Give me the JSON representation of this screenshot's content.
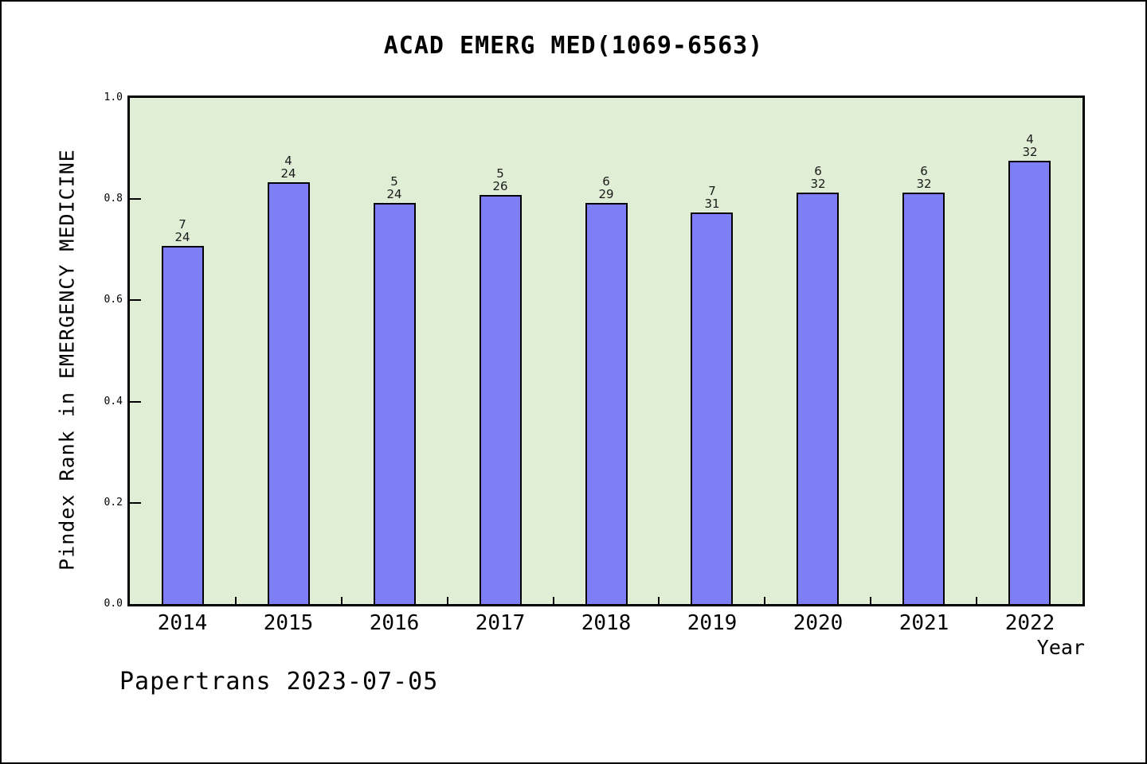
{
  "title": "ACAD EMERG MED(1069-6563)",
  "footer": "Papertrans 2023-07-05",
  "chart_data": {
    "type": "bar",
    "title": "ACAD EMERG MED(1069-6563)",
    "xlabel": "Year",
    "ylabel": "Pindex Rank in EMERGENCY MEDICINE",
    "ylim": [
      0.0,
      1.0
    ],
    "ytick_labels": [
      "1.0",
      "0.8",
      "0.6",
      "0.4",
      "0.2",
      "0.0"
    ],
    "ytick_values": [
      1.0,
      0.8,
      0.6,
      0.4,
      0.2,
      0.0
    ],
    "categories": [
      "2014",
      "2015",
      "2016",
      "2017",
      "2018",
      "2019",
      "2020",
      "2021",
      "2022"
    ],
    "values": [
      0.708,
      0.833,
      0.792,
      0.808,
      0.793,
      0.774,
      0.813,
      0.813,
      0.875
    ],
    "annotations": [
      {
        "rank": "7",
        "total": "24"
      },
      {
        "rank": "4",
        "total": "24"
      },
      {
        "rank": "5",
        "total": "24"
      },
      {
        "rank": "5",
        "total": "26"
      },
      {
        "rank": "6",
        "total": "29"
      },
      {
        "rank": "7",
        "total": "31"
      },
      {
        "rank": "6",
        "total": "32"
      },
      {
        "rank": "6",
        "total": "32"
      },
      {
        "rank": "4",
        "total": "32"
      }
    ],
    "bar_color": "#7e7ef6",
    "bar_edge_color": "#000000",
    "plot_bg_color": "#e0eed6",
    "grid": false,
    "legend": "none"
  }
}
